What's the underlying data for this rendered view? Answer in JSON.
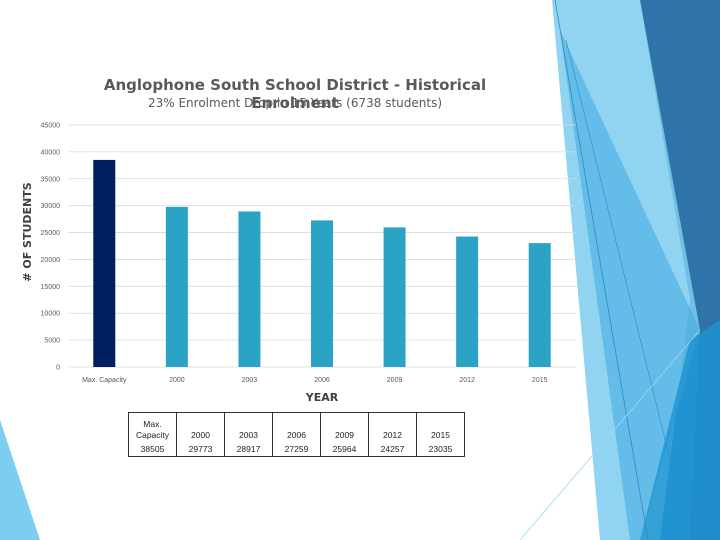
{
  "colors": {
    "highlight_bar": "#002060",
    "bar": "#2ba3c4",
    "grid": "#d9d9d9",
    "text": "#595959"
  },
  "chart_data": {
    "type": "bar",
    "title": "Anglophone South School District - Historical Enrolment",
    "subtitle": "23% Enrolment Drop in 15 Years (6738 students)",
    "xlabel": "YEAR",
    "ylabel": "# OF STUDENTS",
    "categories": [
      "Max. Capacity",
      "2000",
      "2003",
      "2006",
      "2009",
      "2012",
      "2015"
    ],
    "values": [
      38505,
      29773,
      28917,
      27259,
      25964,
      24257,
      23035
    ],
    "ylim": [
      0,
      45000
    ],
    "yticks": [
      "0",
      "5000",
      "10000",
      "15000",
      "20000",
      "25000",
      "30000",
      "35000",
      "40000",
      "45000"
    ],
    "grid": true,
    "legend": "none"
  },
  "table": {
    "headers": [
      "Max. Capacity",
      "2000",
      "2003",
      "2006",
      "2009",
      "2012",
      "2015"
    ],
    "values": [
      "38505",
      "29773",
      "28917",
      "27259",
      "25964",
      "24257",
      "23035"
    ]
  }
}
